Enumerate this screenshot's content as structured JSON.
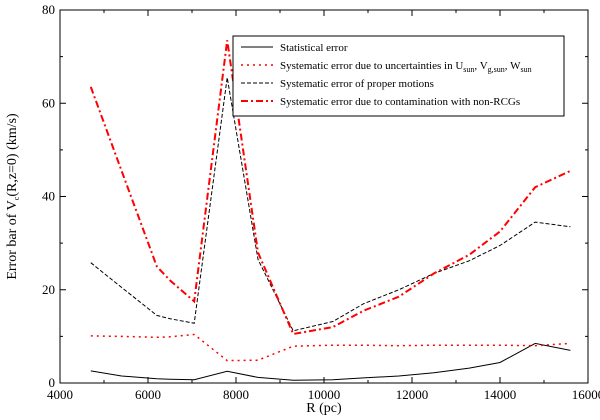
{
  "chart_data": {
    "type": "line",
    "xlabel": "R (pc)",
    "ylabel": {
      "prefix": "Error bar of V",
      "sub": "c",
      "suffix": "(R,z=0) (km/s)"
    },
    "xlim": [
      4000,
      16000
    ],
    "ylim": [
      0,
      80
    ],
    "x_ticks": [
      4000,
      6000,
      8000,
      10000,
      12000,
      14000,
      16000
    ],
    "y_ticks": [
      0,
      20,
      40,
      60,
      80
    ],
    "grid": false,
    "legend_placement": "top-right",
    "x": [
      4700,
      5400,
      6200,
      6500,
      7050,
      7800,
      8500,
      9300,
      10200,
      10900,
      11700,
      12500,
      13300,
      14000,
      14800,
      15600
    ],
    "series": [
      {
        "key": "statistical",
        "legend": [
          {
            "t": "Statistical error"
          }
        ],
        "color": "#000000",
        "style": "solid",
        "width": 1,
        "values": [
          2.6,
          1.5,
          0.9,
          0.8,
          0.7,
          2.5,
          1.2,
          0.6,
          0.7,
          1.1,
          1.5,
          2.2,
          3.2,
          4.4,
          8.5,
          7.0
        ]
      },
      {
        "key": "solar",
        "legend": [
          {
            "t": "Systematic error due to uncertainties in U"
          },
          {
            "t": "sun",
            "sub": true
          },
          {
            "t": ", V"
          },
          {
            "t": "g,sun",
            "sub": true
          },
          {
            "t": ", W"
          },
          {
            "t": "sun",
            "sub": true
          }
        ],
        "color": "#ff0000",
        "style": "dotted",
        "width": 1.5,
        "values": [
          10.1,
          10.0,
          9.8,
          9.9,
          10.4,
          4.8,
          4.9,
          7.9,
          8.1,
          8.1,
          8.0,
          8.1,
          8.1,
          8.1,
          8.0,
          8.5
        ]
      },
      {
        "key": "proper_motion",
        "legend": [
          {
            "t": "Systematic error of proper motions"
          }
        ],
        "color": "#000000",
        "style": "dashed",
        "width": 1,
        "values": [
          25.8,
          20.5,
          14.5,
          13.8,
          12.8,
          65.5,
          26.5,
          11.2,
          13.2,
          17.0,
          20.0,
          23.5,
          26.2,
          29.5,
          34.5,
          33.5
        ]
      },
      {
        "key": "contamination",
        "legend": [
          {
            "t": "Systematic error due to contamination with non-RCGs"
          }
        ],
        "color": "#ff0000",
        "style": "dashdot",
        "width": 2,
        "values": [
          63.5,
          45.5,
          25.0,
          22.0,
          17.5,
          73.5,
          28.0,
          10.5,
          12.0,
          15.5,
          18.5,
          23.5,
          27.5,
          32.5,
          42.0,
          45.5
        ]
      }
    ]
  }
}
